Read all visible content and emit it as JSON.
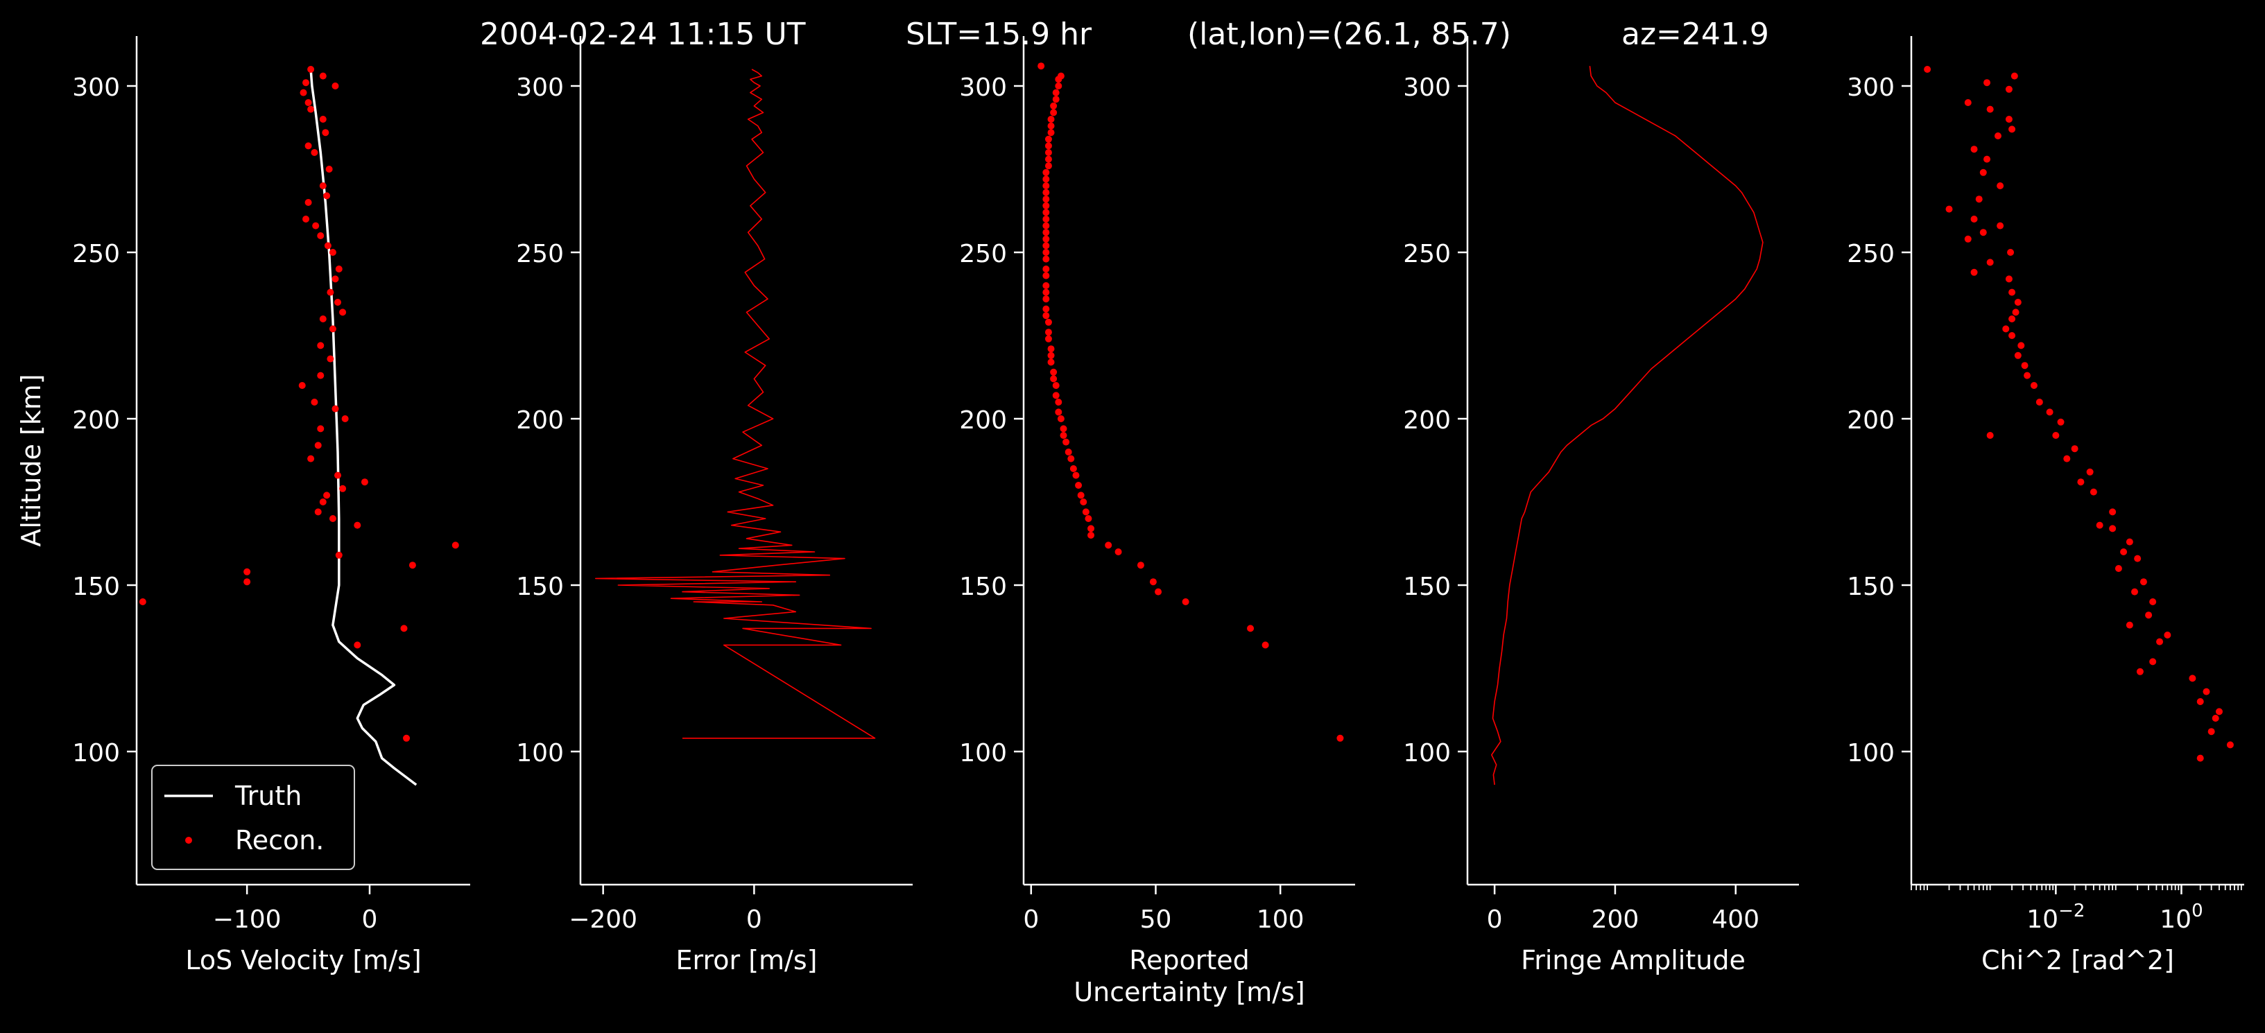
{
  "header": {
    "date": "2004-02-24 11:15 UT",
    "slt": "SLT=15.9 hr",
    "latlon": "(lat,lon)=(26.1, 85.7)",
    "az": "az=241.9"
  },
  "colors": {
    "background": "#000000",
    "foreground": "#ffffff",
    "recon": "#ff0000",
    "truth": "#ffffff"
  },
  "chart_data": [
    {
      "type": "line",
      "xlabel": "LoS Velocity [m/s]",
      "ylabel": "Altitude [km]",
      "xlim": [
        -190,
        82
      ],
      "ylim": [
        60,
        315
      ],
      "xticks": [
        -100,
        0
      ],
      "xtick_labels": [
        "−100",
        "0"
      ],
      "yticks": [
        100,
        150,
        200,
        250,
        300
      ],
      "ytick_labels": [
        "100",
        "150",
        "200",
        "250",
        "300"
      ],
      "legend": {
        "placement": "lower-left",
        "entries": [
          "Truth",
          "Recon."
        ]
      },
      "series": [
        {
          "name": "Truth",
          "style": "line",
          "color": "#ffffff",
          "x": [
            38,
            20,
            10,
            5,
            -6,
            -10,
            -5,
            8,
            20,
            10,
            -10,
            -25,
            -30,
            -25,
            -25,
            -26,
            -28,
            -30,
            -33,
            -36,
            -40,
            -44,
            -47,
            -48
          ],
          "y": [
            90,
            95,
            98,
            103,
            107,
            110,
            114,
            117,
            120,
            123,
            128,
            133,
            138,
            150,
            170,
            190,
            210,
            230,
            250,
            265,
            280,
            292,
            300,
            305
          ]
        },
        {
          "name": "Recon.",
          "style": "points",
          "color": "#ff0000",
          "x": [
            -48,
            -38,
            -52,
            -28,
            -54,
            -50,
            -48,
            -38,
            -36,
            -50,
            -45,
            -33,
            -38,
            -35,
            -50,
            -52,
            -44,
            -40,
            -34,
            -30,
            -25,
            -28,
            -32,
            -26,
            -22,
            -38,
            -30,
            -40,
            -32,
            -40,
            -55,
            -45,
            -28,
            -20,
            -40,
            -42,
            -48,
            -26,
            -4,
            -22,
            -35,
            -38,
            -42,
            -30,
            -10,
            70,
            -25,
            35,
            -100,
            -100,
            -185,
            -10,
            28,
            30
          ],
          "y": [
            305,
            303,
            301,
            300,
            298,
            295,
            293,
            290,
            286,
            282,
            280,
            275,
            270,
            267,
            265,
            260,
            258,
            255,
            252,
            250,
            245,
            242,
            238,
            235,
            232,
            230,
            227,
            222,
            218,
            213,
            210,
            205,
            203,
            200,
            197,
            192,
            188,
            183,
            181,
            179,
            177,
            175,
            172,
            170,
            168,
            162,
            159,
            156,
            154,
            151,
            145,
            132,
            137,
            104
          ]
        }
      ]
    },
    {
      "type": "line",
      "xlabel": "Error [m/s]",
      "xlim": [
        -230,
        210
      ],
      "ylim": [
        60,
        315
      ],
      "xticks": [
        -200,
        0
      ],
      "xtick_labels": [
        "−200",
        "0"
      ],
      "yticks": [
        100,
        150,
        200,
        250,
        300
      ],
      "ytick_labels": [
        "100",
        "150",
        "200",
        "250",
        "300"
      ],
      "series": [
        {
          "style": "line",
          "color": "#ff0000",
          "x": [
            -95,
            160,
            -40,
            115,
            -15,
            155,
            -40,
            55,
            25,
            -80,
            10,
            -110,
            60,
            -95,
            20,
            -180,
            55,
            -210,
            100,
            -55,
            30,
            120,
            -45,
            80,
            -20,
            50,
            -10,
            35,
            -30,
            15,
            -35,
            25,
            5,
            -20,
            12,
            -25,
            18,
            -28,
            10,
            -15,
            25,
            -8,
            12,
            0,
            15,
            -12,
            20,
            5,
            -10,
            18,
            0,
            -12,
            14,
            5,
            -8,
            10,
            -5,
            15,
            0,
            -10,
            12,
            -3,
            10,
            5,
            -8,
            12,
            0,
            10,
            -5,
            8,
            0,
            -5,
            10,
            5,
            -3
          ],
          "y": [
            104,
            104,
            132,
            132,
            137,
            137,
            140,
            142,
            144,
            145,
            145,
            146,
            147,
            148,
            149,
            150,
            151,
            152,
            153,
            154,
            156,
            158,
            159,
            160,
            161,
            162,
            164,
            166,
            168,
            170,
            172,
            174,
            176,
            178,
            180,
            182,
            185,
            188,
            192,
            196,
            200,
            204,
            208,
            212,
            216,
            220,
            224,
            228,
            232,
            236,
            240,
            244,
            248,
            252,
            256,
            260,
            264,
            268,
            272,
            276,
            280,
            284,
            286,
            288,
            290,
            292,
            294,
            296,
            298,
            300,
            301,
            302,
            303,
            304,
            305
          ]
        }
      ]
    },
    {
      "type": "scatter",
      "xlabel": "Reported\nUncertainty [m/s]",
      "xlim": [
        -3,
        130
      ],
      "ylim": [
        60,
        315
      ],
      "xticks": [
        0,
        50,
        100
      ],
      "xtick_labels": [
        "0",
        "50",
        "100"
      ],
      "yticks": [
        100,
        150,
        200,
        250,
        300
      ],
      "ytick_labels": [
        "100",
        "150",
        "200",
        "250",
        "300"
      ],
      "series": [
        {
          "style": "points",
          "color": "#ff0000",
          "x": [
            124,
            94,
            88,
            62,
            51,
            49,
            44,
            35,
            31,
            24,
            24,
            23,
            22,
            21,
            20,
            19,
            18,
            17,
            16,
            15,
            14,
            13,
            13,
            12,
            11,
            11,
            10,
            10,
            9,
            9,
            8,
            8,
            8,
            7,
            7,
            7,
            6,
            6,
            6,
            6,
            6,
            6,
            6,
            6,
            6,
            6,
            6,
            6,
            6,
            6,
            6,
            6,
            6,
            6,
            6,
            6,
            6,
            7,
            7,
            7,
            7,
            7,
            8,
            8,
            8,
            9,
            9,
            10,
            10,
            11,
            11,
            12,
            4
          ],
          "y": [
            104,
            132,
            137,
            145,
            148,
            151,
            156,
            160,
            162,
            165,
            167,
            170,
            172,
            175,
            177,
            180,
            183,
            185,
            188,
            190,
            193,
            195,
            197,
            200,
            202,
            205,
            207,
            210,
            212,
            214,
            217,
            219,
            221,
            224,
            226,
            229,
            231,
            233,
            236,
            238,
            240,
            243,
            245,
            248,
            250,
            252,
            254,
            256,
            258,
            260,
            262,
            264,
            266,
            268,
            270,
            272,
            274,
            276,
            278,
            280,
            282,
            284,
            286,
            288,
            290,
            292,
            294,
            296,
            298,
            300,
            302,
            303,
            306
          ]
        }
      ]
    },
    {
      "type": "line",
      "xlabel": "Fringe Amplitude",
      "xlim": [
        -45,
        505
      ],
      "ylim": [
        60,
        315
      ],
      "xticks": [
        0,
        200,
        400
      ],
      "xtick_labels": [
        "0",
        "200",
        "400"
      ],
      "yticks": [
        100,
        150,
        200,
        250,
        300
      ],
      "ytick_labels": [
        "100",
        "150",
        "200",
        "250",
        "300"
      ],
      "series": [
        {
          "style": "line",
          "color": "#ff0000",
          "x": [
            0,
            -2,
            3,
            -5,
            10,
            5,
            -3,
            0,
            5,
            8,
            12,
            15,
            20,
            22,
            25,
            30,
            35,
            40,
            45,
            50,
            55,
            60,
            70,
            80,
            90,
            100,
            110,
            120,
            140,
            160,
            180,
            200,
            215,
            230,
            245,
            260,
            280,
            300,
            320,
            340,
            360,
            380,
            400,
            415,
            425,
            435,
            440,
            442,
            445,
            440,
            435,
            430,
            420,
            410,
            400,
            380,
            360,
            340,
            320,
            300,
            280,
            260,
            240,
            220,
            200,
            185,
            170,
            160,
            158
          ],
          "y": [
            90,
            93,
            96,
            99,
            103,
            106,
            110,
            115,
            120,
            125,
            130,
            135,
            140,
            145,
            150,
            155,
            160,
            165,
            170,
            172,
            175,
            178,
            180,
            182,
            184,
            187,
            190,
            192,
            195,
            198,
            200,
            203,
            206,
            209,
            212,
            215,
            218,
            221,
            224,
            227,
            230,
            233,
            236,
            239,
            242,
            245,
            248,
            250,
            253,
            256,
            259,
            262,
            265,
            268,
            270,
            273,
            276,
            279,
            282,
            285,
            287,
            289,
            291,
            293,
            295,
            298,
            300,
            303,
            306
          ]
        }
      ]
    },
    {
      "type": "scatter",
      "xlabel": "Chi^2 [rad^2]",
      "xscale": "log",
      "xlim": [
        5e-05,
        10
      ],
      "ylim": [
        60,
        315
      ],
      "xticks": [
        0.01,
        1
      ],
      "xtick_label_base": "10",
      "xtick_label_exponents": [
        "−2",
        "0"
      ],
      "yticks": [
        100,
        150,
        200,
        250,
        300
      ],
      "ytick_labels": [
        "100",
        "150",
        "200",
        "250",
        "300"
      ],
      "series": [
        {
          "style": "points",
          "color": "#ff0000",
          "x": [
            9e-05,
            0.0022,
            0.0008,
            0.0018,
            0.0004,
            0.0009,
            0.0018,
            0.002,
            0.0012,
            0.0005,
            0.0008,
            0.0007,
            0.0013,
            0.0002,
            0.0006,
            0.0005,
            0.0013,
            0.0007,
            0.0004,
            0.0019,
            0.0009,
            0.0005,
            0.0018,
            0.002,
            0.0025,
            0.0023,
            0.002,
            0.0016,
            0.002,
            0.0028,
            0.0025,
            0.0032,
            0.0035,
            0.0045,
            0.0055,
            0.0009,
            0.008,
            0.012,
            0.01,
            0.02,
            0.015,
            0.035,
            0.025,
            0.04,
            0.08,
            0.05,
            0.08,
            0.15,
            0.12,
            0.2,
            0.1,
            0.25,
            0.18,
            0.35,
            0.3,
            0.15,
            0.6,
            0.45,
            0.35,
            0.22,
            1.5,
            2.5,
            2.0,
            4.0,
            3.5,
            3.0,
            6.0,
            2.0
          ],
          "y": [
            305,
            303,
            301,
            299,
            295,
            293,
            290,
            287,
            285,
            281,
            278,
            274,
            270,
            263,
            266,
            260,
            258,
            256,
            254,
            250,
            247,
            244,
            242,
            238,
            235,
            232,
            230,
            227,
            225,
            222,
            219,
            216,
            213,
            210,
            205,
            195,
            202,
            199,
            195,
            191,
            188,
            184,
            181,
            178,
            172,
            168,
            167,
            163,
            160,
            158,
            155,
            151,
            148,
            145,
            141,
            138,
            135,
            133,
            127,
            124,
            122,
            118,
            115,
            112,
            110,
            106,
            102,
            98
          ]
        }
      ]
    }
  ]
}
